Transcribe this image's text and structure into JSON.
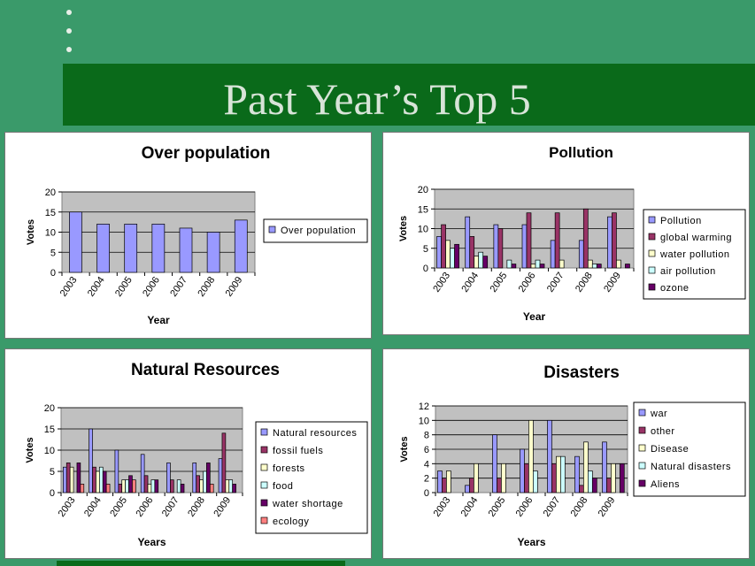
{
  "slide": {
    "title": "Past Year’s Top 5"
  },
  "chart_data": [
    {
      "type": "bar",
      "title": "Over population",
      "xlabel": "Year",
      "ylabel": "Votes",
      "categories": [
        "2003",
        "2004",
        "2005",
        "2006",
        "2007",
        "2008",
        "2009"
      ],
      "ylim": [
        0,
        20
      ],
      "yticks": [
        0,
        5,
        10,
        15,
        20
      ],
      "grid": true,
      "legend_position": "right",
      "series": [
        {
          "name": "Over population",
          "color": "#9999ff",
          "values": [
            15,
            12,
            12,
            12,
            11,
            10,
            13
          ]
        }
      ]
    },
    {
      "type": "bar",
      "title": "Pollution",
      "xlabel": "Year",
      "ylabel": "Votes",
      "categories": [
        "2003",
        "2004",
        "2005",
        "2006",
        "2007",
        "2008",
        "2009"
      ],
      "ylim": [
        0,
        20
      ],
      "yticks": [
        0,
        5,
        10,
        15,
        20
      ],
      "grid": true,
      "legend_position": "right",
      "series": [
        {
          "name": "Pollution",
          "color": "#9999ff",
          "values": [
            8,
            13,
            11,
            11,
            7,
            7,
            13
          ]
        },
        {
          "name": "global warming",
          "color": "#993366",
          "values": [
            11,
            8,
            10,
            14,
            14,
            15,
            14
          ]
        },
        {
          "name": "water pollution",
          "color": "#ffffcc",
          "values": [
            7,
            3,
            0,
            1,
            2,
            2,
            2
          ]
        },
        {
          "name": "air pollution",
          "color": "#ccffff",
          "values": [
            5,
            4,
            2,
            2,
            0,
            1,
            0
          ]
        },
        {
          "name": "ozone",
          "color": "#660066",
          "values": [
            6,
            3,
            1,
            1,
            0,
            1,
            1
          ]
        }
      ]
    },
    {
      "type": "bar",
      "title": "Natural Resources",
      "xlabel": "Years",
      "ylabel": "Votes",
      "categories": [
        "2003",
        "2004",
        "2005",
        "2006",
        "2007",
        "2008",
        "2009"
      ],
      "ylim": [
        0,
        20
      ],
      "yticks": [
        0,
        5,
        10,
        15,
        20
      ],
      "grid": true,
      "legend_position": "right",
      "series": [
        {
          "name": "Natural resources",
          "color": "#9999ff",
          "values": [
            6,
            15,
            10,
            9,
            7,
            7,
            8
          ]
        },
        {
          "name": "fossil fuels",
          "color": "#993366",
          "values": [
            7,
            6,
            2,
            4,
            3,
            4,
            14
          ]
        },
        {
          "name": "forests",
          "color": "#ffffcc",
          "values": [
            6,
            5,
            3,
            2,
            0,
            3,
            3
          ]
        },
        {
          "name": "food",
          "color": "#ccffff",
          "values": [
            0,
            6,
            3,
            3,
            3,
            5,
            3
          ]
        },
        {
          "name": "water shortage",
          "color": "#660066",
          "values": [
            7,
            5,
            4,
            3,
            2,
            7,
            2
          ]
        },
        {
          "name": "ecology",
          "color": "#ff8080",
          "values": [
            2,
            2,
            3,
            0,
            0,
            2,
            0
          ]
        }
      ]
    },
    {
      "type": "bar",
      "title": "Disasters",
      "xlabel": "Years",
      "ylabel": "Votes",
      "categories": [
        "2003",
        "2004",
        "2005",
        "2006",
        "2007",
        "2008",
        "2009"
      ],
      "ylim": [
        0,
        12
      ],
      "yticks": [
        0,
        2,
        4,
        6,
        8,
        10,
        12
      ],
      "grid": true,
      "legend_position": "right",
      "series": [
        {
          "name": "war",
          "color": "#9999ff",
          "values": [
            3,
            1,
            8,
            6,
            10,
            5,
            7
          ]
        },
        {
          "name": "other",
          "color": "#993366",
          "values": [
            2,
            2,
            2,
            4,
            4,
            1,
            2
          ]
        },
        {
          "name": "Disease",
          "color": "#ffffcc",
          "values": [
            3,
            4,
            4,
            10,
            5,
            7,
            4
          ]
        },
        {
          "name": "Natural disasters",
          "color": "#ccffff",
          "values": [
            0,
            0,
            0,
            3,
            5,
            3,
            0
          ]
        },
        {
          "name": "Aliens",
          "color": "#660066",
          "values": [
            0,
            0,
            0,
            0,
            0,
            2,
            4
          ]
        }
      ]
    }
  ]
}
